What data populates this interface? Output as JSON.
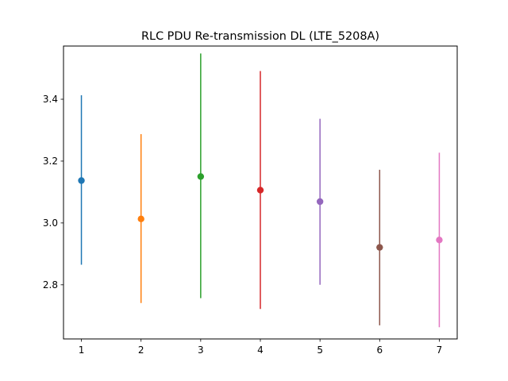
{
  "chart_data": {
    "type": "errorbar",
    "title": "RLC PDU Re-transmission DL (LTE_5208A)",
    "xlabel": "",
    "ylabel": "",
    "xlim": [
      0.7,
      7.3
    ],
    "ylim": [
      2.625,
      3.572
    ],
    "x_ticks": [
      "1",
      "2",
      "3",
      "4",
      "5",
      "6",
      "7"
    ],
    "y_ticks": [
      "2.8",
      "3.0",
      "3.2",
      "3.4"
    ],
    "grid": false,
    "points": [
      {
        "x": 1,
        "mean": 3.137,
        "low": 2.865,
        "high": 3.413,
        "color": "#1f77b4"
      },
      {
        "x": 2,
        "mean": 3.013,
        "low": 2.741,
        "high": 3.287,
        "color": "#ff7f0e"
      },
      {
        "x": 3,
        "mean": 3.15,
        "low": 2.757,
        "high": 3.548,
        "color": "#2ca02c"
      },
      {
        "x": 4,
        "mean": 3.106,
        "low": 2.722,
        "high": 3.491,
        "color": "#d62728"
      },
      {
        "x": 5,
        "mean": 3.069,
        "low": 2.8,
        "high": 3.337,
        "color": "#9467bd"
      },
      {
        "x": 6,
        "mean": 2.921,
        "low": 2.669,
        "high": 3.172,
        "color": "#8c564b"
      },
      {
        "x": 7,
        "mean": 2.945,
        "low": 2.663,
        "high": 3.227,
        "color": "#e377c2"
      }
    ]
  }
}
